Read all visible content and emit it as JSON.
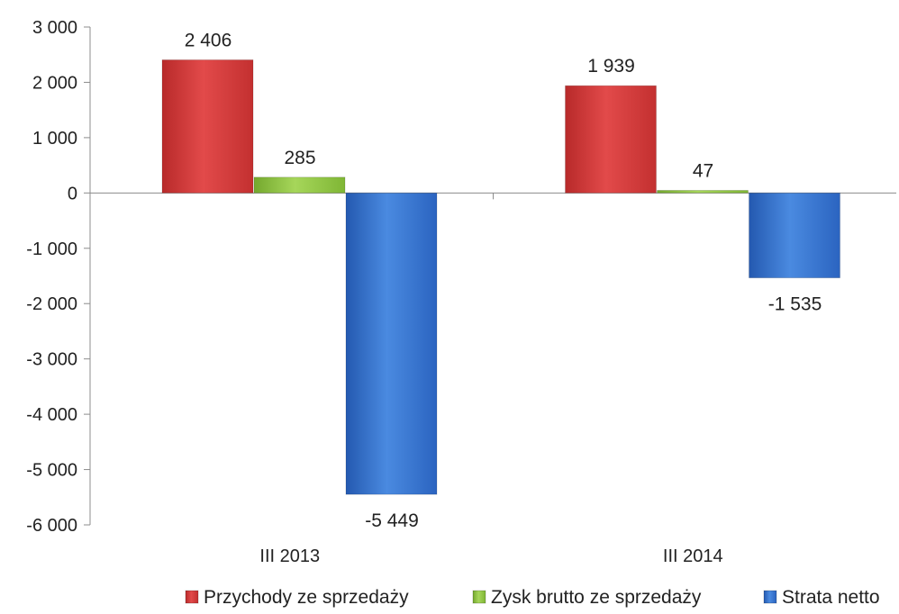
{
  "chart_data": {
    "type": "bar",
    "categories": [
      "III 2013",
      "III 2014"
    ],
    "series": [
      {
        "name": "Przychody ze sprzedaży",
        "values": [
          2406,
          1939
        ],
        "labels": [
          "2 406",
          "1 939"
        ],
        "color": "#d63a3a"
      },
      {
        "name": "Zysk brutto ze sprzedaży",
        "values": [
          285,
          47
        ],
        "labels": [
          "285",
          "47"
        ],
        "color": "#8cc63f"
      },
      {
        "name": "Strata netto",
        "values": [
          -5449,
          -1535
        ],
        "labels": [
          "-5 449",
          "-1 535"
        ],
        "color": "#2f6fcf"
      }
    ],
    "ylim": [
      -6000,
      3000
    ],
    "yticks": [
      3000,
      2000,
      1000,
      0,
      -1000,
      -2000,
      -3000,
      -4000,
      -5000,
      -6000
    ],
    "ytick_labels": [
      "3 000",
      "2 000",
      "1 000",
      "0",
      "-1 000",
      "-2 000",
      "-3 000",
      "-4 000",
      "-5 000",
      "-6 000"
    ],
    "grid": false,
    "legend_position": "bottom",
    "title": "",
    "xlabel": "",
    "ylabel": ""
  }
}
